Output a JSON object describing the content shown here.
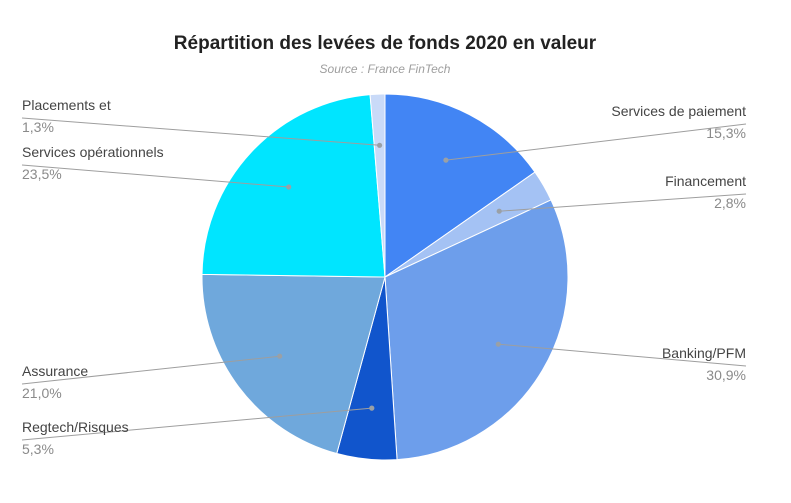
{
  "chart_data": {
    "type": "pie",
    "title": "Répartition des levées de fonds 2020 en valeur",
    "subtitle": "Source : France FinTech",
    "slices": [
      {
        "name": "Services de paiement",
        "value": 15.3,
        "value_label": "15,3%",
        "color": "#4285f4"
      },
      {
        "name": "Financement",
        "value": 2.8,
        "value_label": "2,8%",
        "color": "#a4c2f4"
      },
      {
        "name": "Banking/PFM",
        "value": 30.9,
        "value_label": "30,9%",
        "color": "#6d9eeb"
      },
      {
        "name": "Regtech/Risques",
        "value": 5.3,
        "value_label": "5,3%",
        "color": "#1155cc"
      },
      {
        "name": "Assurance",
        "value": 21.0,
        "value_label": "21,0%",
        "color": "#6fa8dc"
      },
      {
        "name": "Services opérationnels",
        "value": 23.5,
        "value_label": "23,5%",
        "color": "#00e5ff"
      },
      {
        "name": "Placements et",
        "value": 1.3,
        "value_label": "1,3%",
        "color": "#c9daf8"
      }
    ],
    "start_angle_deg": 0,
    "direction": "clockwise",
    "legend": "none",
    "labels": "outside-with-leaders"
  }
}
